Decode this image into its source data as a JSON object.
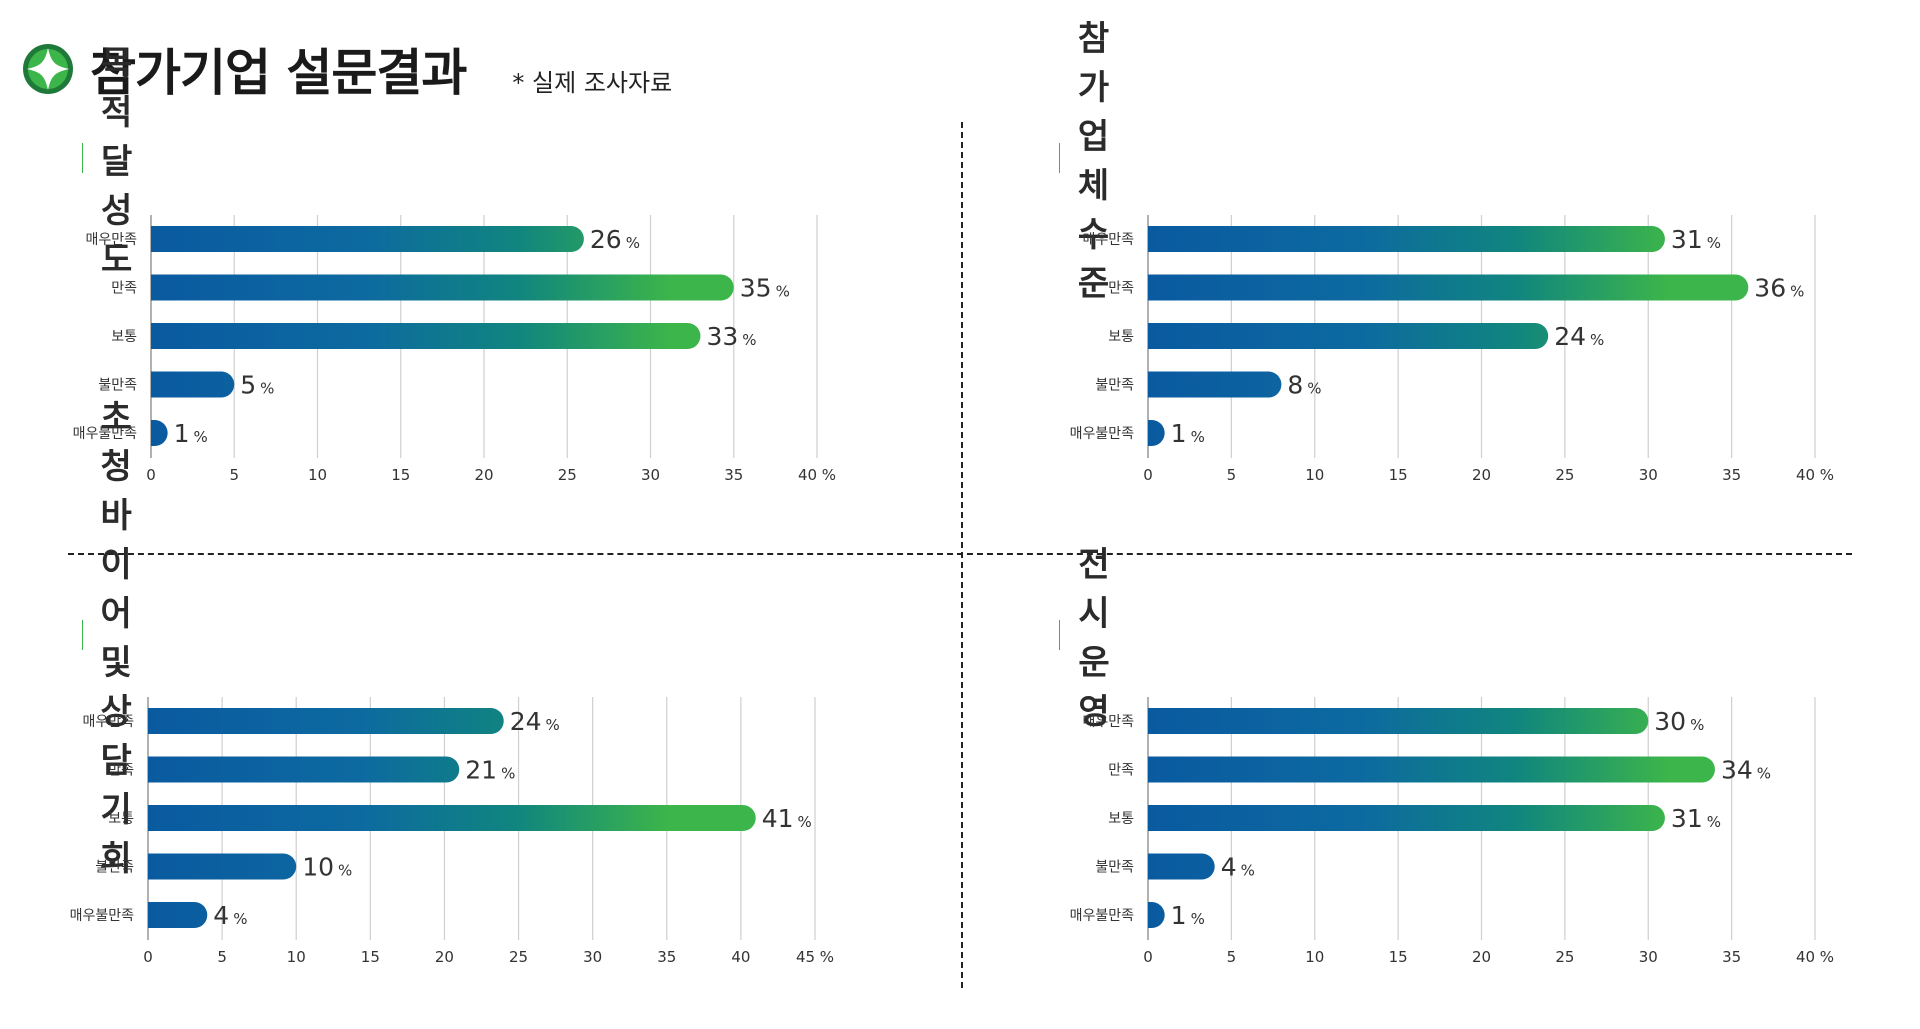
{
  "header": {
    "title": "참가기업 설문결과",
    "note": "* 실제 조사자료"
  },
  "colors": {
    "bar_start": "#0a5aa0",
    "bar_end": "#3cb54a",
    "accent": "#3cb54a",
    "grid": "#cfcfcf"
  },
  "chart_data": [
    {
      "type": "bar",
      "orientation": "horizontal",
      "title": "목적 달성도",
      "categories": [
        "매우만족",
        "만족",
        "보통",
        "불만족",
        "매우불만족"
      ],
      "values": [
        26,
        35,
        33,
        5,
        1
      ],
      "value_suffix": "%",
      "xlim": [
        0,
        40
      ],
      "xticks": [
        "0",
        "5",
        "10",
        "15",
        "20",
        "25",
        "30",
        "35",
        "40 %"
      ],
      "grid": true
    },
    {
      "type": "bar",
      "orientation": "horizontal",
      "title": "참가업체 수준",
      "categories": [
        "매우만족",
        "만족",
        "보통",
        "불만족",
        "매우불만족"
      ],
      "values": [
        31,
        36,
        24,
        8,
        1
      ],
      "value_suffix": "%",
      "xlim": [
        0,
        40
      ],
      "xticks": [
        "0",
        "5",
        "10",
        "15",
        "20",
        "25",
        "30",
        "35",
        "40 %"
      ],
      "grid": true
    },
    {
      "type": "bar",
      "orientation": "horizontal",
      "title": "초청바이어 및 상담기회",
      "categories": [
        "매우만족",
        "만족",
        "보통",
        "불만족",
        "매우불만족"
      ],
      "values": [
        24,
        21,
        41,
        10,
        4
      ],
      "value_suffix": "%",
      "xlim": [
        0,
        45
      ],
      "xticks": [
        "0",
        "5",
        "10",
        "15",
        "20",
        "25",
        "30",
        "35",
        "40",
        "45 %"
      ],
      "grid": true
    },
    {
      "type": "bar",
      "orientation": "horizontal",
      "title": "전시운영",
      "categories": [
        "매우만족",
        "만족",
        "보통",
        "불만족",
        "매우불만족"
      ],
      "values": [
        30,
        34,
        31,
        4,
        1
      ],
      "value_suffix": "%",
      "xlim": [
        0,
        40
      ],
      "xticks": [
        "0",
        "5",
        "10",
        "15",
        "20",
        "25",
        "30",
        "35",
        "40 %"
      ],
      "grid": true
    }
  ]
}
